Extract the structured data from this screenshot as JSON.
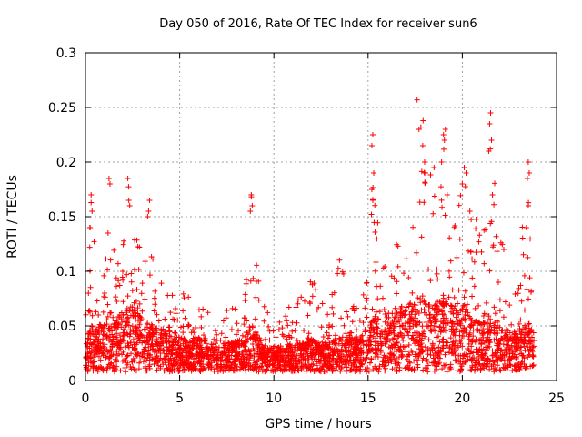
{
  "chart_data": {
    "type": "scatter",
    "title": "Day 050 of 2016, Rate Of TEC Index for receiver sun6",
    "xlabel": "GPS time / hours",
    "ylabel": "ROTI / TECUs",
    "xlim": [
      0,
      25
    ],
    "ylim": [
      0,
      0.3
    ],
    "xticks": [
      0,
      5,
      10,
      15,
      20,
      25
    ],
    "xtick_labels": [
      "0",
      "5",
      "10",
      "15",
      "20",
      "25"
    ],
    "yticks": [
      0,
      0.05,
      0.1,
      0.15,
      0.2,
      0.25,
      0.3
    ],
    "ytick_labels": [
      "0",
      "0.05",
      "0.1",
      "0.15",
      "0.2",
      "0.25",
      "0.3"
    ],
    "grid": true,
    "marker": "+",
    "color": "#ff0000",
    "x_range_of_data": [
      0,
      23.8
    ],
    "envelope": {
      "description": "approximate upper envelope of ROTI vs GPS time",
      "x": [
        0,
        0.3,
        0.6,
        1.0,
        1.3,
        1.6,
        2.0,
        2.3,
        2.7,
        3.0,
        3.4,
        3.8,
        4.2,
        4.6,
        5.0,
        5.5,
        6.0,
        6.5,
        7.0,
        7.5,
        8.0,
        8.5,
        8.8,
        9.2,
        9.6,
        10.0,
        10.5,
        11.0,
        11.5,
        12.0,
        12.5,
        13.0,
        13.5,
        14.0,
        14.5,
        15.0,
        15.3,
        15.6,
        16.0,
        16.5,
        17.0,
        17.5,
        17.8,
        18.2,
        18.6,
        19.0,
        19.3,
        19.7,
        20.0,
        20.4,
        20.8,
        21.2,
        21.5,
        21.8,
        22.2,
        22.6,
        23.0,
        23.4,
        23.8
      ],
      "ymax": [
        0.06,
        0.17,
        0.1,
        0.12,
        0.19,
        0.11,
        0.13,
        0.19,
        0.14,
        0.13,
        0.16,
        0.09,
        0.1,
        0.08,
        0.085,
        0.08,
        0.08,
        0.065,
        0.05,
        0.085,
        0.07,
        0.09,
        0.17,
        0.09,
        0.065,
        0.06,
        0.07,
        0.07,
        0.11,
        0.1,
        0.08,
        0.07,
        0.12,
        0.08,
        0.09,
        0.1,
        0.22,
        0.12,
        0.1,
        0.13,
        0.16,
        0.16,
        0.26,
        0.2,
        0.17,
        0.23,
        0.2,
        0.16,
        0.2,
        0.17,
        0.15,
        0.14,
        0.24,
        0.16,
        0.12,
        0.09,
        0.1,
        0.2,
        0.12
      ],
      "ymedian": [
        0.02,
        0.035,
        0.03,
        0.035,
        0.04,
        0.035,
        0.04,
        0.045,
        0.04,
        0.035,
        0.035,
        0.03,
        0.03,
        0.025,
        0.025,
        0.025,
        0.025,
        0.022,
        0.02,
        0.022,
        0.022,
        0.028,
        0.035,
        0.025,
        0.02,
        0.02,
        0.02,
        0.022,
        0.025,
        0.025,
        0.022,
        0.022,
        0.025,
        0.025,
        0.025,
        0.03,
        0.04,
        0.035,
        0.035,
        0.04,
        0.045,
        0.045,
        0.05,
        0.045,
        0.045,
        0.05,
        0.045,
        0.04,
        0.045,
        0.04,
        0.035,
        0.035,
        0.04,
        0.035,
        0.03,
        0.028,
        0.028,
        0.035,
        0.03
      ]
    },
    "outliers": [
      {
        "x": 0.3,
        "y": 0.17
      },
      {
        "x": 0.35,
        "y": 0.155
      },
      {
        "x": 0.25,
        "y": 0.14
      },
      {
        "x": 1.25,
        "y": 0.185
      },
      {
        "x": 1.3,
        "y": 0.18
      },
      {
        "x": 1.2,
        "y": 0.135
      },
      {
        "x": 2.25,
        "y": 0.185
      },
      {
        "x": 2.3,
        "y": 0.165
      },
      {
        "x": 2.35,
        "y": 0.16
      },
      {
        "x": 3.4,
        "y": 0.165
      },
      {
        "x": 3.35,
        "y": 0.155
      },
      {
        "x": 3.3,
        "y": 0.15
      },
      {
        "x": 8.8,
        "y": 0.17
      },
      {
        "x": 8.85,
        "y": 0.16
      },
      {
        "x": 8.75,
        "y": 0.155
      },
      {
        "x": 15.25,
        "y": 0.225
      },
      {
        "x": 15.2,
        "y": 0.215
      },
      {
        "x": 15.3,
        "y": 0.19
      },
      {
        "x": 15.2,
        "y": 0.175
      },
      {
        "x": 15.25,
        "y": 0.165
      },
      {
        "x": 17.6,
        "y": 0.257
      },
      {
        "x": 17.8,
        "y": 0.232
      },
      {
        "x": 17.7,
        "y": 0.23
      },
      {
        "x": 17.9,
        "y": 0.215
      },
      {
        "x": 18.0,
        "y": 0.2
      },
      {
        "x": 18.05,
        "y": 0.19
      },
      {
        "x": 18.5,
        "y": 0.195
      },
      {
        "x": 19.1,
        "y": 0.23
      },
      {
        "x": 19.0,
        "y": 0.225
      },
      {
        "x": 19.05,
        "y": 0.22
      },
      {
        "x": 18.9,
        "y": 0.2
      },
      {
        "x": 19.2,
        "y": 0.17
      },
      {
        "x": 20.1,
        "y": 0.195
      },
      {
        "x": 20.2,
        "y": 0.19
      },
      {
        "x": 20.0,
        "y": 0.18
      },
      {
        "x": 21.5,
        "y": 0.245
      },
      {
        "x": 21.45,
        "y": 0.235
      },
      {
        "x": 21.55,
        "y": 0.22
      },
      {
        "x": 21.4,
        "y": 0.21
      },
      {
        "x": 21.6,
        "y": 0.17
      },
      {
        "x": 23.5,
        "y": 0.2
      },
      {
        "x": 23.55,
        "y": 0.19
      },
      {
        "x": 23.45,
        "y": 0.185
      },
      {
        "x": 23.5,
        "y": 0.16
      },
      {
        "x": 23.4,
        "y": 0.14
      }
    ]
  }
}
